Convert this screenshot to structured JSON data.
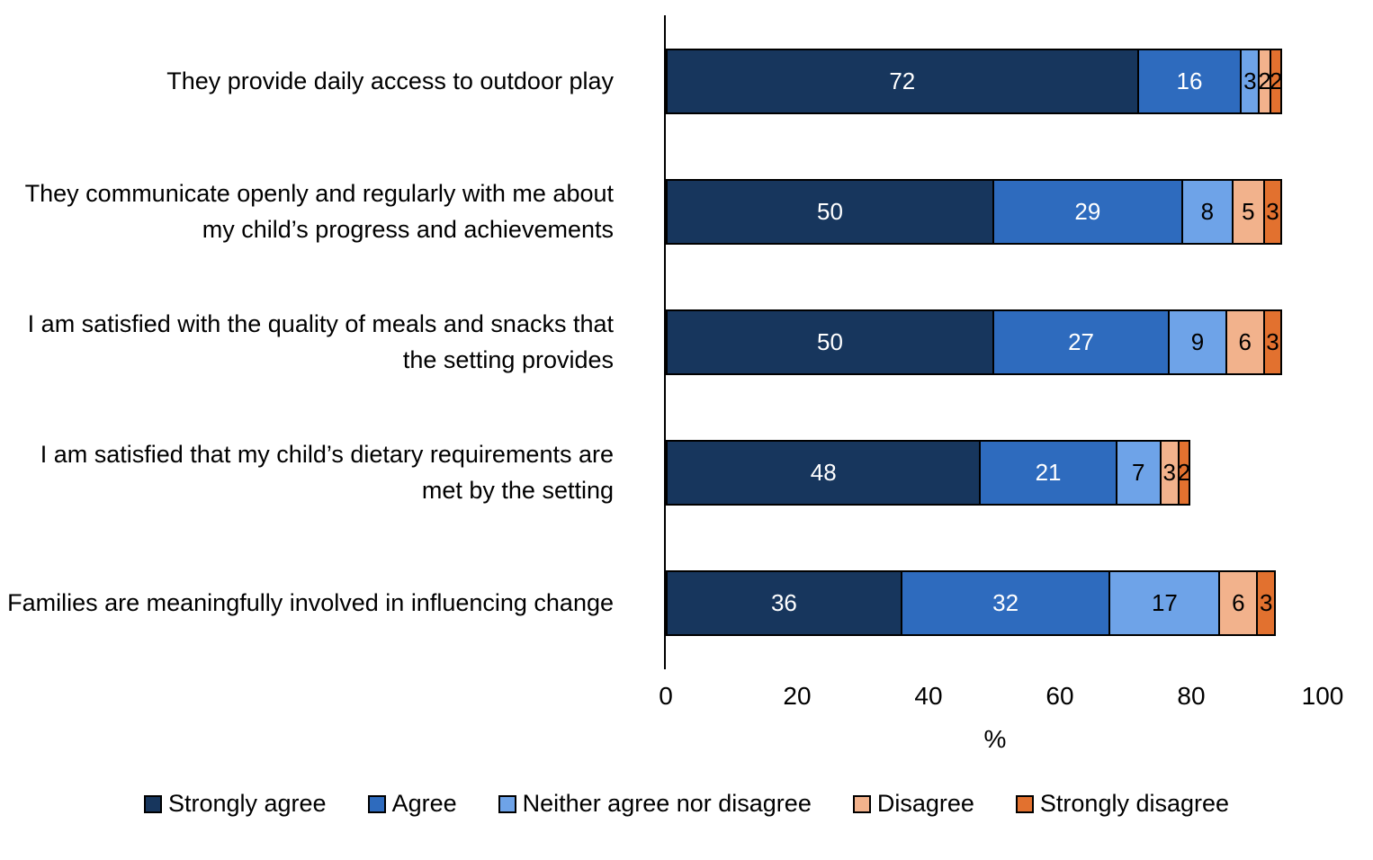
{
  "chart_data": {
    "type": "bar",
    "orientation": "horizontal_stacked",
    "title": "",
    "xlabel": "%",
    "xlim": [
      0,
      100
    ],
    "xticks": [
      0,
      20,
      40,
      60,
      80,
      100
    ],
    "grid": false,
    "legend_position": "bottom",
    "bar_border_color": "#000000",
    "categories": [
      "They provide daily access to outdoor play",
      "They communicate openly and regularly with me about my child’s progress and achievements",
      "I am satisfied with the quality of meals and snacks that the setting provides",
      "I am satisfied that my child’s dietary requirements are met by the setting",
      "Families are meaningfully involved in influencing change"
    ],
    "series": [
      {
        "name": "Strongly agree",
        "color": "#17365D",
        "label_color": "#FFFFFF",
        "values": [
          72,
          50,
          50,
          48,
          36
        ]
      },
      {
        "name": "Agree",
        "color": "#2E6BBE",
        "label_color": "#FFFFFF",
        "values": [
          16,
          29,
          27,
          21,
          32
        ]
      },
      {
        "name": "Neither agree nor disagree",
        "color": "#6EA3E8",
        "label_color": "#000000",
        "values": [
          3,
          8,
          9,
          7,
          17
        ]
      },
      {
        "name": "Disagree",
        "color": "#F2B28C",
        "label_color": "#000000",
        "values": [
          2,
          5,
          6,
          3,
          6
        ]
      },
      {
        "name": "Strongly disagree",
        "color": "#E2712F",
        "label_color": "#000000",
        "values": [
          2,
          3,
          3,
          2,
          3
        ]
      }
    ],
    "pixels_per_percent": 7.3
  }
}
